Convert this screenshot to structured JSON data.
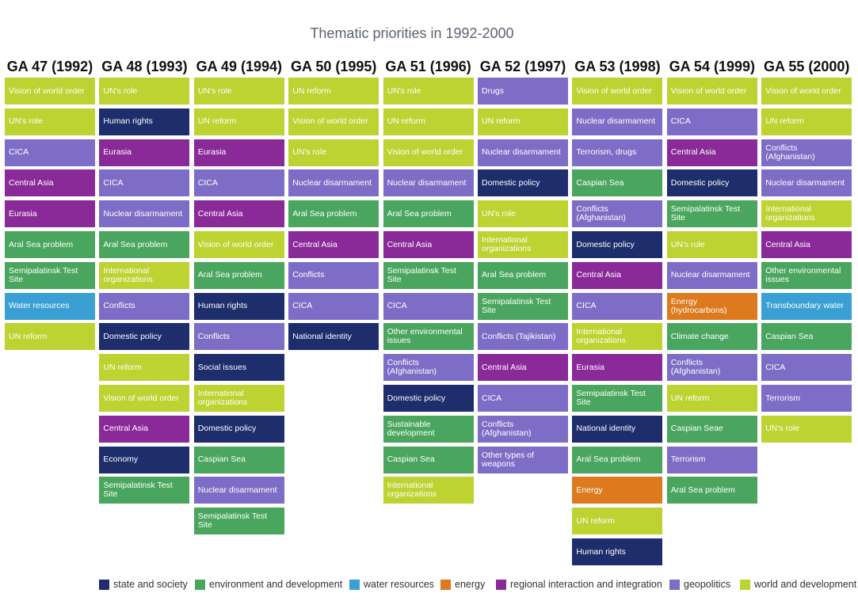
{
  "title": "Thematic priorities in 1992-2000",
  "colors": {
    "state_and_society": "#1e2d6b",
    "environment_and_development": "#4aa65e",
    "water_resources": "#3aa0d4",
    "energy": "#dd7a1e",
    "regional_interaction_and_integration": "#8a2a98",
    "geopolitics": "#7e6dc6",
    "world_and_development": "#bcd332"
  },
  "legend": [
    {
      "key": "state_and_society",
      "label": "state and society"
    },
    {
      "key": "environment_and_development",
      "label": "environment and development"
    },
    {
      "key": "water_resources",
      "label": "water resources"
    },
    {
      "key": "energy",
      "label": "energy"
    },
    {
      "key": "regional_interaction_and_integration",
      "label": "regional interaction and integration"
    },
    {
      "key": "geopolitics",
      "label": "geopolitics"
    },
    {
      "key": "world_and_development",
      "label": "world and development"
    }
  ],
  "chart_data": {
    "type": "table",
    "title": "Thematic priorities in 1992-2000",
    "columns": [
      {
        "header": "GA 47 (1992)",
        "items": [
          {
            "label": "Vision of world order",
            "category": "world_and_development"
          },
          {
            "label": "UN's role",
            "category": "world_and_development"
          },
          {
            "label": "CICA",
            "category": "geopolitics"
          },
          {
            "label": "Central Asia",
            "category": "regional_interaction_and_integration"
          },
          {
            "label": "Eurasia",
            "category": "regional_interaction_and_integration"
          },
          {
            "label": "Aral Sea problem",
            "category": "environment_and_development"
          },
          {
            "label": "Semipalatinsk Test Site",
            "category": "environment_and_development"
          },
          {
            "label": "Water resources",
            "category": "water_resources"
          },
          {
            "label": "UN reform",
            "category": "world_and_development"
          }
        ]
      },
      {
        "header": "GA 48 (1993)",
        "items": [
          {
            "label": "UN's role",
            "category": "world_and_development"
          },
          {
            "label": "Human rights",
            "category": "state_and_society"
          },
          {
            "label": "Eurasia",
            "category": "regional_interaction_and_integration"
          },
          {
            "label": "CICA",
            "category": "geopolitics"
          },
          {
            "label": "Nuclear disarmament",
            "category": "geopolitics"
          },
          {
            "label": "Aral Sea problem",
            "category": "environment_and_development"
          },
          {
            "label": "International organizations",
            "category": "world_and_development"
          },
          {
            "label": "Conflicts",
            "category": "geopolitics"
          },
          {
            "label": "Domestic policy",
            "category": "state_and_society"
          },
          {
            "label": "UN reform",
            "category": "world_and_development"
          },
          {
            "label": "Vision of world order",
            "category": "world_and_development"
          },
          {
            "label": "Central Asia",
            "category": "regional_interaction_and_integration"
          },
          {
            "label": "Economy",
            "category": "state_and_society"
          },
          {
            "label": "Semipalatinsk Test Site",
            "category": "environment_and_development"
          }
        ]
      },
      {
        "header": "GA 49 (1994)",
        "items": [
          {
            "label": "UN's role",
            "category": "world_and_development"
          },
          {
            "label": "UN reform",
            "category": "world_and_development"
          },
          {
            "label": "Eurasia",
            "category": "regional_interaction_and_integration"
          },
          {
            "label": "CICA",
            "category": "geopolitics"
          },
          {
            "label": "Central Asia",
            "category": "regional_interaction_and_integration"
          },
          {
            "label": "Vision of world order",
            "category": "world_and_development"
          },
          {
            "label": "Aral Sea problem",
            "category": "environment_and_development"
          },
          {
            "label": "Human rights",
            "category": "state_and_society"
          },
          {
            "label": "Conflicts",
            "category": "geopolitics"
          },
          {
            "label": "Social issues",
            "category": "state_and_society"
          },
          {
            "label": "International organizations",
            "category": "world_and_development"
          },
          {
            "label": "Domestic policy",
            "category": "state_and_society"
          },
          {
            "label": "Caspian Sea",
            "category": "environment_and_development"
          },
          {
            "label": "Nuclear disarmament",
            "category": "geopolitics"
          },
          {
            "label": "Semipalatinsk Test Site",
            "category": "environment_and_development"
          }
        ]
      },
      {
        "header": "GA 50 (1995)",
        "items": [
          {
            "label": "UN reform",
            "category": "world_and_development"
          },
          {
            "label": "Vision of world order",
            "category": "world_and_development"
          },
          {
            "label": "UN's role",
            "category": "world_and_development"
          },
          {
            "label": "Nuclear disarmament",
            "category": "geopolitics"
          },
          {
            "label": "Aral Sea problem",
            "category": "environment_and_development"
          },
          {
            "label": "Central Asia",
            "category": "regional_interaction_and_integration"
          },
          {
            "label": "Conflicts",
            "category": "geopolitics"
          },
          {
            "label": "CICA",
            "category": "geopolitics"
          },
          {
            "label": "National identity",
            "category": "state_and_society"
          }
        ]
      },
      {
        "header": "GA 51 (1996)",
        "items": [
          {
            "label": "UN's role",
            "category": "world_and_development"
          },
          {
            "label": "UN reform",
            "category": "world_and_development"
          },
          {
            "label": "Vision of world order",
            "category": "world_and_development"
          },
          {
            "label": "Nuclear disarmament",
            "category": "geopolitics"
          },
          {
            "label": "Aral Sea problem",
            "category": "environment_and_development"
          },
          {
            "label": "Central Asia",
            "category": "regional_interaction_and_integration"
          },
          {
            "label": "Semipalatinsk Test Site",
            "category": "environment_and_development"
          },
          {
            "label": "CICA",
            "category": "geopolitics"
          },
          {
            "label": "Other environmental issues",
            "category": "environment_and_development"
          },
          {
            "label": "Conflicts (Afghanistan)",
            "category": "geopolitics"
          },
          {
            "label": "Domestic policy",
            "category": "state_and_society"
          },
          {
            "label": "Sustainable development",
            "category": "environment_and_development"
          },
          {
            "label": "Caspian Sea",
            "category": "environment_and_development"
          },
          {
            "label": "International organizations",
            "category": "world_and_development"
          }
        ]
      },
      {
        "header": "GA 52 (1997)",
        "items": [
          {
            "label": "Drugs",
            "category": "geopolitics"
          },
          {
            "label": "UN reform",
            "category": "world_and_development"
          },
          {
            "label": "Nuclear disarmament",
            "category": "geopolitics"
          },
          {
            "label": "Domestic policy",
            "category": "state_and_society"
          },
          {
            "label": "UN's role",
            "category": "world_and_development"
          },
          {
            "label": "International organizations",
            "category": "world_and_development"
          },
          {
            "label": "Aral Sea problem",
            "category": "environment_and_development"
          },
          {
            "label": "Semipalatinsk Test Site",
            "category": "environment_and_development"
          },
          {
            "label": "Conflicts (Tajikistan)",
            "category": "geopolitics"
          },
          {
            "label": "Central Asia",
            "category": "regional_interaction_and_integration"
          },
          {
            "label": "CICA",
            "category": "geopolitics"
          },
          {
            "label": "Conflicts (Afghanistan)",
            "category": "geopolitics"
          },
          {
            "label": "Other types of weapons",
            "category": "geopolitics"
          }
        ]
      },
      {
        "header": "GA 53 (1998)",
        "items": [
          {
            "label": "Vision of world order",
            "category": "world_and_development"
          },
          {
            "label": "Nuclear disarmament",
            "category": "geopolitics"
          },
          {
            "label": "Terrorism, drugs",
            "category": "geopolitics"
          },
          {
            "label": "Caspian Sea",
            "category": "environment_and_development"
          },
          {
            "label": "Conflicts (Afghanistan)",
            "category": "geopolitics"
          },
          {
            "label": "Domestic policy",
            "category": "state_and_society"
          },
          {
            "label": "Central Asia",
            "category": "regional_interaction_and_integration"
          },
          {
            "label": "CICA",
            "category": "geopolitics"
          },
          {
            "label": "International organizations",
            "category": "world_and_development"
          },
          {
            "label": "Eurasia",
            "category": "regional_interaction_and_integration"
          },
          {
            "label": "Semipalatinsk Test Site",
            "category": "environment_and_development"
          },
          {
            "label": "National identity",
            "category": "state_and_society"
          },
          {
            "label": "Aral Sea problem",
            "category": "environment_and_development"
          },
          {
            "label": "Energy",
            "category": "energy"
          },
          {
            "label": "UN reform",
            "category": "world_and_development"
          },
          {
            "label": "Human rights",
            "category": "state_and_society"
          }
        ]
      },
      {
        "header": "GA 54 (1999)",
        "items": [
          {
            "label": "Vision of world order",
            "category": "world_and_development"
          },
          {
            "label": "CICA",
            "category": "geopolitics"
          },
          {
            "label": "Central Asia",
            "category": "regional_interaction_and_integration"
          },
          {
            "label": "Domestic policy",
            "category": "state_and_society"
          },
          {
            "label": "Semipalatinsk Test Site",
            "category": "environment_and_development"
          },
          {
            "label": "UN's role",
            "category": "world_and_development"
          },
          {
            "label": "Nuclear disarmament",
            "category": "geopolitics"
          },
          {
            "label": "Energy (hydrocarbons)",
            "category": "energy"
          },
          {
            "label": "Climate change",
            "category": "environment_and_development"
          },
          {
            "label": "Conflicts (Afghanistan)",
            "category": "geopolitics"
          },
          {
            "label": "UN reform",
            "category": "world_and_development"
          },
          {
            "label": "Caspian Seae",
            "category": "environment_and_development"
          },
          {
            "label": "Terrorism",
            "category": "geopolitics"
          },
          {
            "label": "Aral Sea problem",
            "category": "environment_and_development"
          }
        ]
      },
      {
        "header": "GA 55 (2000)",
        "items": [
          {
            "label": "Vision of world order",
            "category": "world_and_development"
          },
          {
            "label": "UN reform",
            "category": "world_and_development"
          },
          {
            "label": "Conflicts (Afghanistan)",
            "category": "geopolitics"
          },
          {
            "label": "Nuclear disarmament",
            "category": "geopolitics"
          },
          {
            "label": "International organizations",
            "category": "world_and_development"
          },
          {
            "label": "Central Asia",
            "category": "regional_interaction_and_integration"
          },
          {
            "label": "Other environmental issues",
            "category": "environment_and_development"
          },
          {
            "label": "Transboundary water",
            "category": "water_resources"
          },
          {
            "label": "Caspian Sea",
            "category": "environment_and_development"
          },
          {
            "label": "CICA",
            "category": "geopolitics"
          },
          {
            "label": "Terrorism",
            "category": "geopolitics"
          },
          {
            "label": "UN's role",
            "category": "world_and_development"
          }
        ]
      }
    ]
  }
}
